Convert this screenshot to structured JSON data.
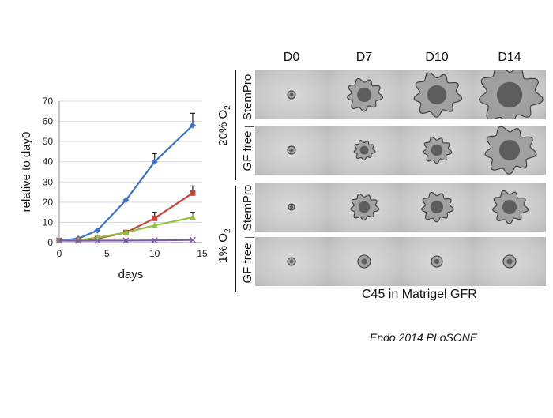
{
  "chart_data": {
    "type": "line",
    "xlabel": "days",
    "ylabel": "relative to day0",
    "xlim": [
      0,
      15
    ],
    "ylim": [
      0,
      70
    ],
    "xticks": [
      0,
      5,
      10,
      15
    ],
    "yticks": [
      0,
      10,
      20,
      30,
      40,
      50,
      60,
      70
    ],
    "grid": "horizontal",
    "series": [
      {
        "name": "20% O2 StemPro",
        "color": "#3a72c4",
        "marker": "diamond",
        "x": [
          0,
          2,
          4,
          7,
          10,
          14
        ],
        "y": [
          1,
          2,
          6,
          21,
          40,
          58
        ],
        "err": [
          0,
          0,
          0,
          0,
          4,
          6
        ]
      },
      {
        "name": "20% O2 GF free",
        "color": "#c8403a",
        "marker": "square",
        "x": [
          0,
          2,
          4,
          7,
          10,
          14
        ],
        "y": [
          1,
          1.2,
          2,
          5,
          12,
          24.5
        ],
        "err": [
          0,
          0,
          0,
          0,
          3,
          3.5
        ]
      },
      {
        "name": "1% O2 StemPro",
        "color": "#92c040",
        "marker": "triangle",
        "x": [
          0,
          2,
          4,
          7,
          10,
          14
        ],
        "y": [
          1,
          1.2,
          2.5,
          5,
          8.5,
          12.5
        ],
        "err": [
          0,
          0,
          0,
          0,
          0,
          2.5
        ]
      },
      {
        "name": "1% O2 GF free",
        "color": "#7d5aa6",
        "marker": "x",
        "x": [
          0,
          2,
          4,
          7,
          10,
          14
        ],
        "y": [
          1,
          0.9,
          1,
          1,
          1.1,
          1.3
        ],
        "err": [
          0,
          0,
          0,
          0,
          0,
          0
        ]
      }
    ]
  },
  "panel": {
    "days": [
      "D0",
      "D7",
      "D10",
      "D14"
    ],
    "groups": [
      {
        "label": "20% O",
        "sub": "2"
      },
      {
        "label": "1% O",
        "sub": "2"
      }
    ],
    "rows": [
      "StemPro",
      "GF free",
      "StemPro",
      "GF free"
    ],
    "caption": "C45 in Matrigel GFR",
    "citation": "Endo 2014 PLoSONE"
  }
}
